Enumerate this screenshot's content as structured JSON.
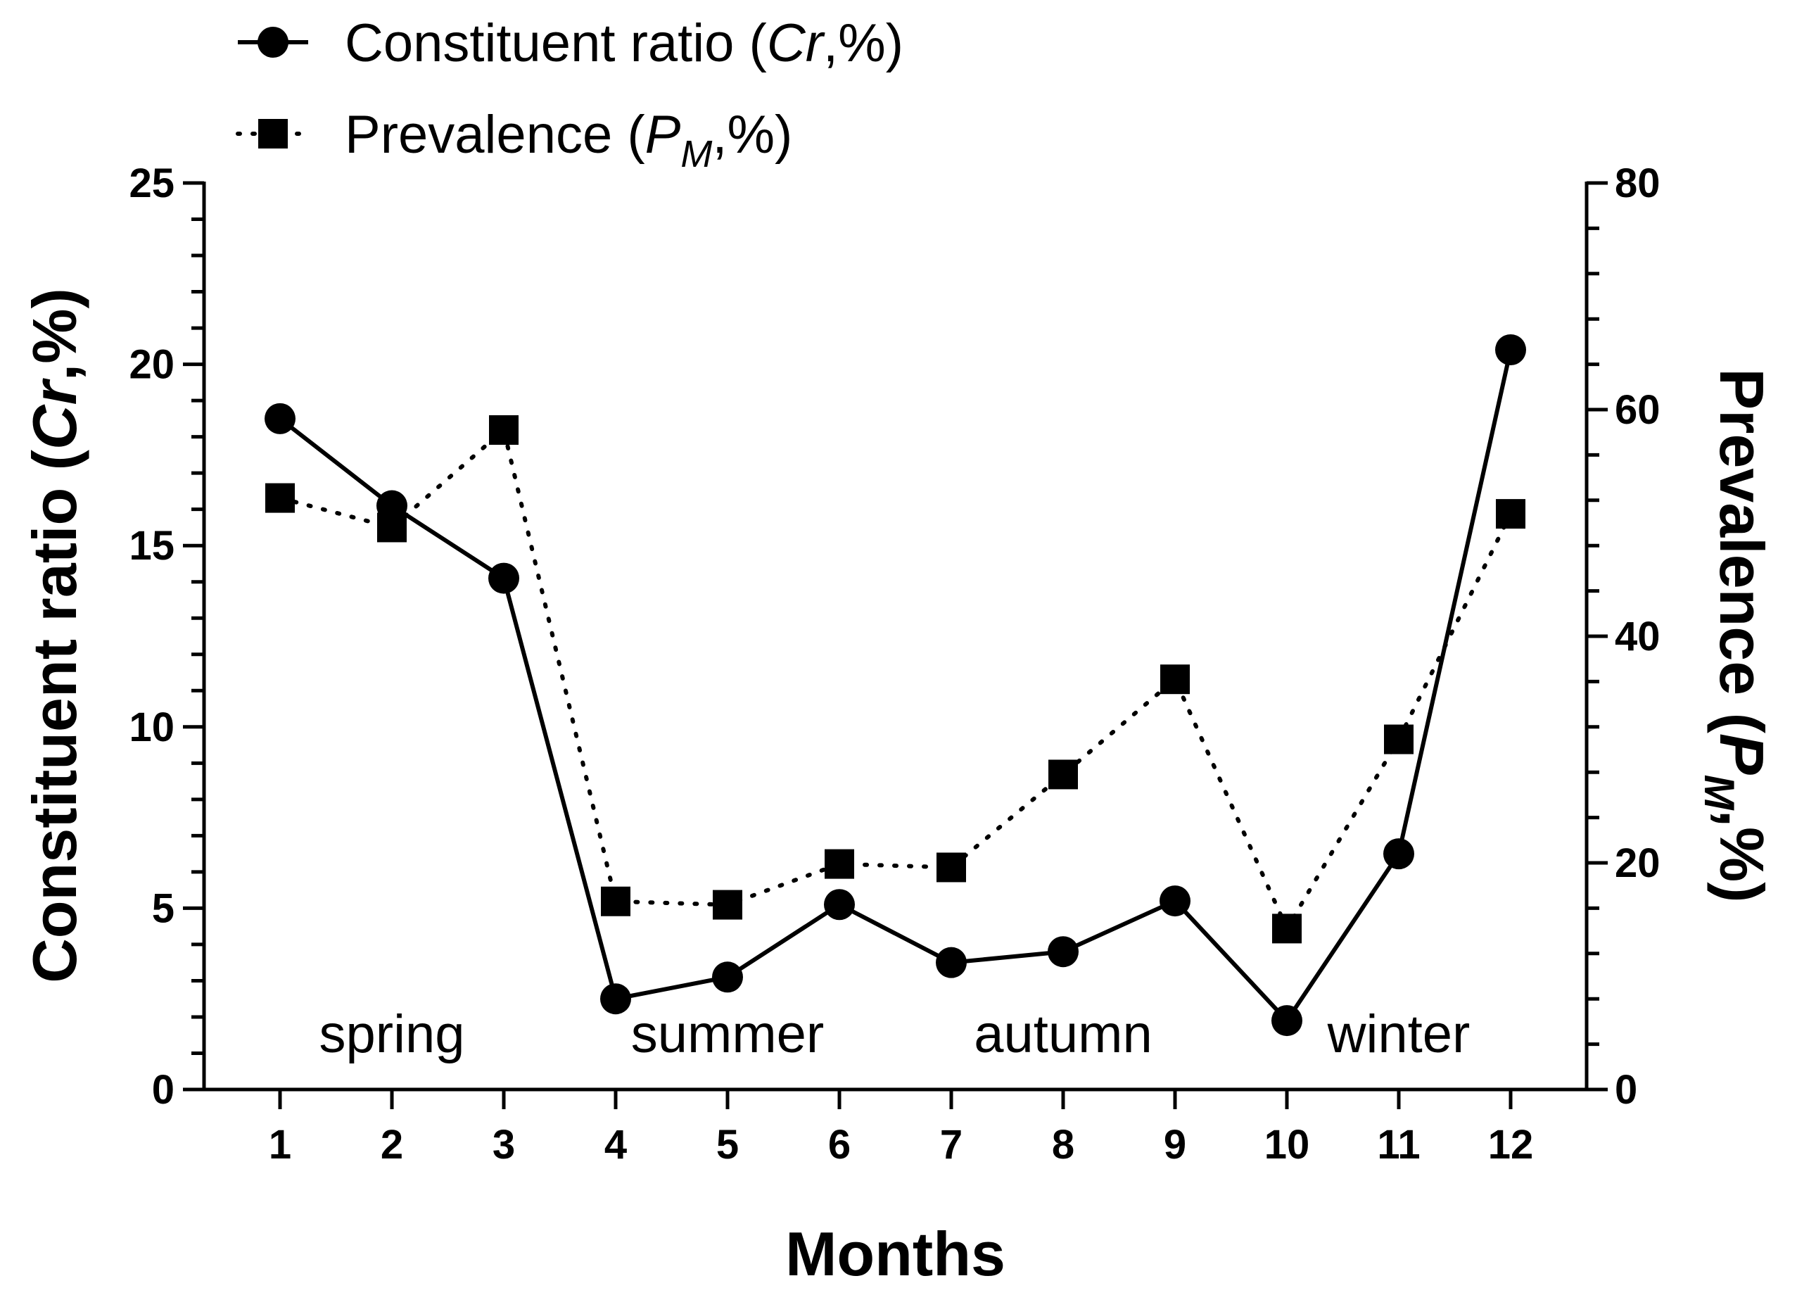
{
  "chart_data": {
    "type": "line",
    "x": [
      1,
      2,
      3,
      4,
      5,
      6,
      7,
      8,
      9,
      10,
      11,
      12
    ],
    "xlabel": "Months",
    "x_tick_labels": [
      "1",
      "2",
      "3",
      "4",
      "5",
      "6",
      "7",
      "8",
      "9",
      "10",
      "11",
      "12"
    ],
    "y_left": {
      "label_main": "Constituent ratio (",
      "label_italic": "Cr",
      "label_tail": ",%)",
      "ylim": [
        0,
        25
      ],
      "ticks": [
        0,
        5,
        10,
        15,
        20,
        25
      ]
    },
    "y_right": {
      "label_main": "Prevalence (",
      "label_italic": "P",
      "label_sub": "M",
      "label_tail": ",%)",
      "ylim": [
        0,
        80
      ],
      "ticks": [
        0,
        20,
        40,
        60,
        80
      ]
    },
    "series": [
      {
        "name": "Constituent ratio (Cr,%)",
        "axis": "left",
        "marker": "circle",
        "line": "solid",
        "values": [
          18.5,
          16.1,
          14.1,
          2.5,
          3.1,
          5.1,
          3.5,
          3.8,
          5.2,
          1.9,
          6.5,
          20.4
        ]
      },
      {
        "name": "Prevalence (PM,%)",
        "axis": "right",
        "marker": "square",
        "line": "dotted",
        "values": [
          52.2,
          49.6,
          58.2,
          16.6,
          16.3,
          19.9,
          19.6,
          27.8,
          36.2,
          14.2,
          30.9,
          50.8
        ]
      }
    ],
    "legend": {
      "position": "top-left",
      "entries": [
        {
          "main": "Constituent ratio (",
          "italic": "Cr",
          "sub": "",
          "tail": ",%)"
        },
        {
          "main": "Prevalence (",
          "italic": "P",
          "sub": "M",
          "tail": ",%)"
        }
      ]
    },
    "annotations": [
      {
        "text": "spring",
        "x": 2.0
      },
      {
        "text": "summer",
        "x": 5.0
      },
      {
        "text": "autumn",
        "x": 8.0
      },
      {
        "text": "winter",
        "x": 11.0
      }
    ],
    "colors": {
      "ink": "#000000",
      "background": "#ffffff"
    }
  }
}
